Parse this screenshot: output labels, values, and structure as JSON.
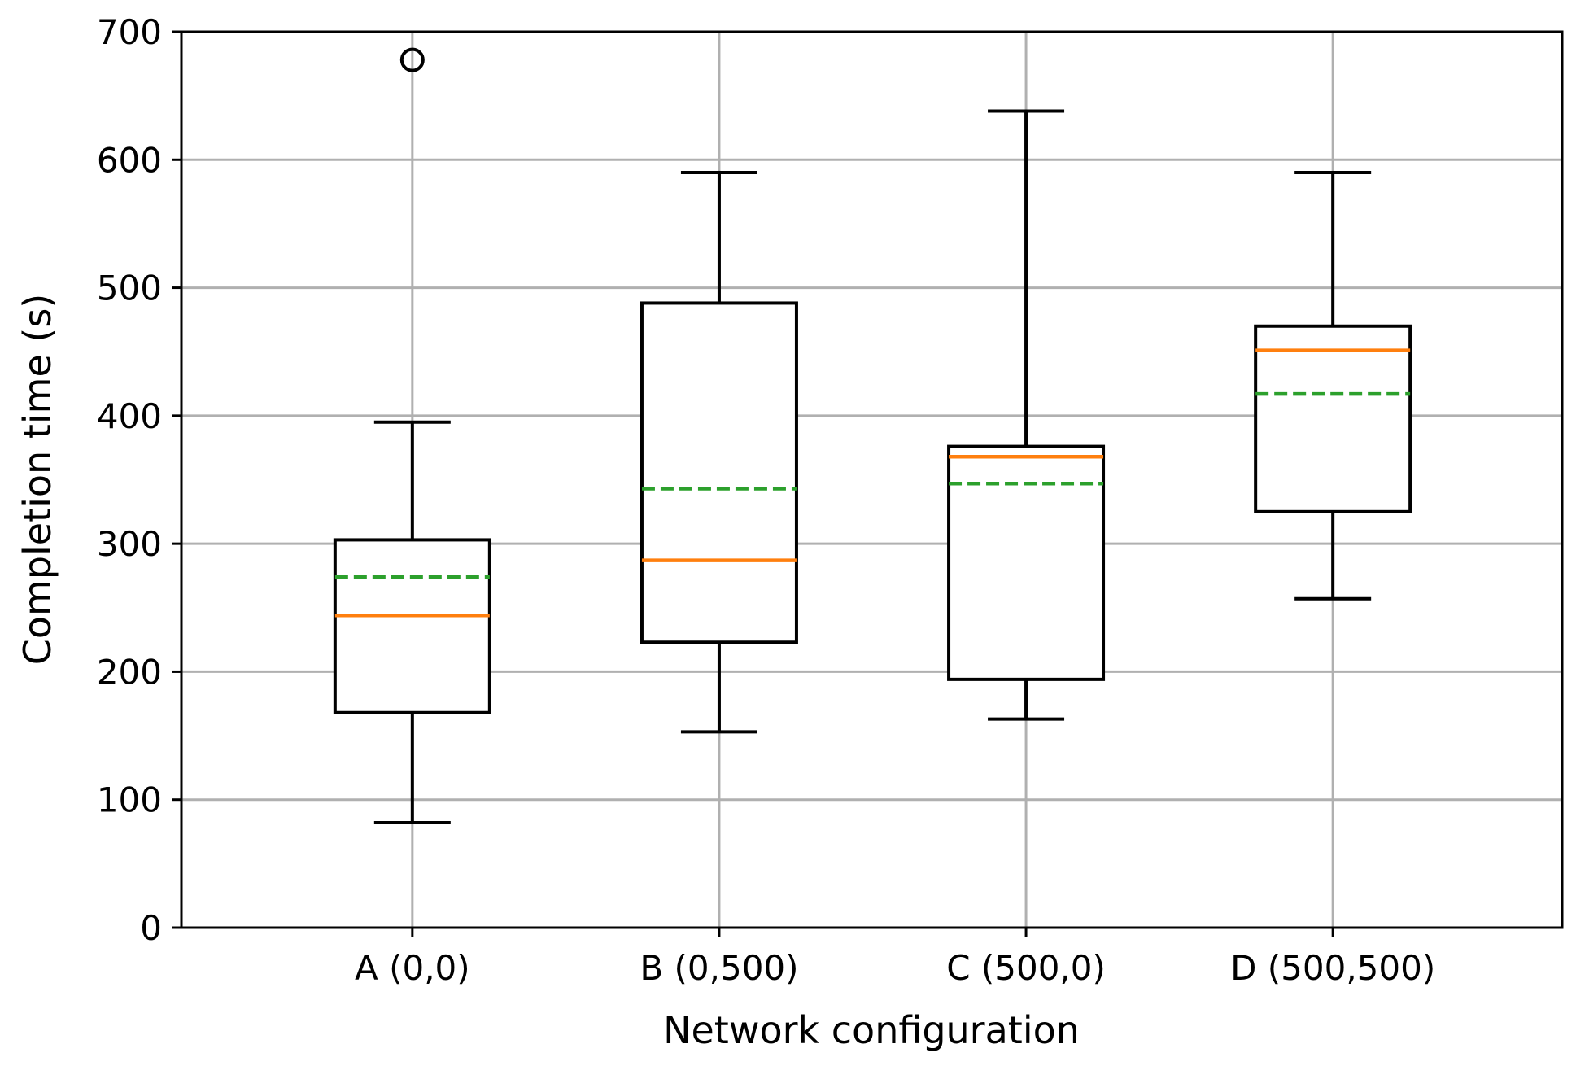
{
  "chart_data": {
    "type": "boxplot",
    "xlabel": "Network configuration",
    "ylabel": "Completion time (s)",
    "ylim": [
      0,
      700
    ],
    "yticks": [
      0,
      100,
      200,
      300,
      400,
      500,
      600,
      700
    ],
    "grid": true,
    "categories": [
      "A (0,0)",
      "B (0,500)",
      "C (500,0)",
      "D (500,500)"
    ],
    "boxes": [
      {
        "whisker_low": 82,
        "q1": 168,
        "median": 244,
        "mean": 274,
        "q3": 303,
        "whisker_high": 395,
        "outliers": [
          678
        ]
      },
      {
        "whisker_low": 153,
        "q1": 223,
        "median": 287,
        "mean": 343,
        "q3": 488,
        "whisker_high": 590,
        "outliers": []
      },
      {
        "whisker_low": 163,
        "q1": 194,
        "median": 368,
        "mean": 347,
        "q3": 376,
        "whisker_high": 638,
        "outliers": []
      },
      {
        "whisker_low": 257,
        "q1": 325,
        "median": 451,
        "mean": 417,
        "q3": 470,
        "whisker_high": 590,
        "outliers": []
      }
    ],
    "colors": {
      "box": "#000000",
      "median": "#ff7f0e",
      "mean": "#2ca02c",
      "grid": "#b0b0b0"
    }
  }
}
